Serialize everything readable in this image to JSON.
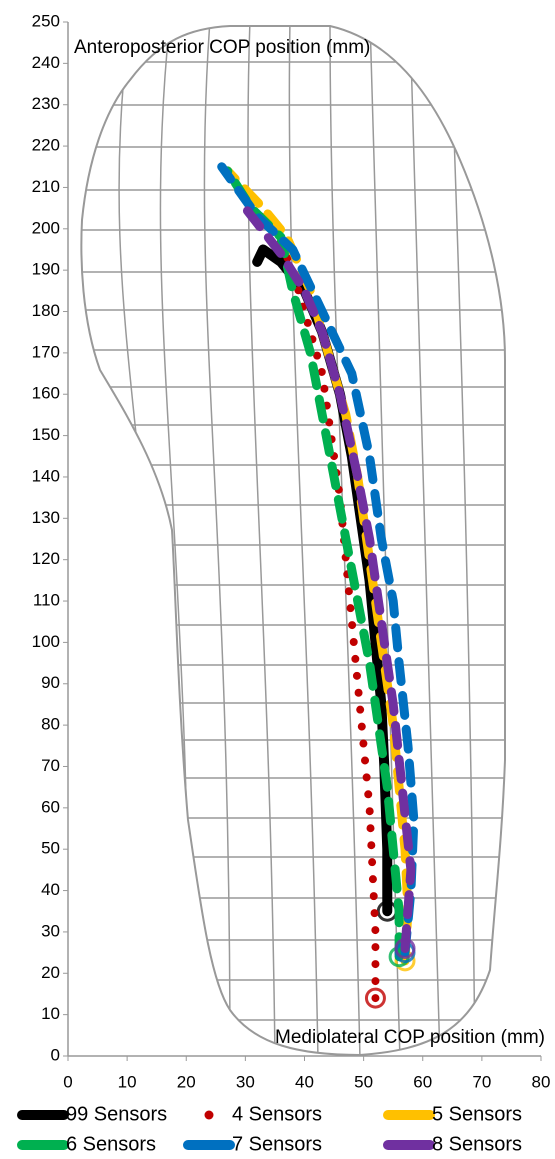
{
  "chart_data": {
    "type": "line",
    "y_label": "Anteroposterior COP position (mm)",
    "x_label": "Mediolateral COP position (mm)",
    "xlim": [
      0,
      80
    ],
    "xticks": [
      0,
      10,
      20,
      30,
      40,
      50,
      60,
      70,
      80
    ],
    "ylim": [
      0,
      250
    ],
    "yticks": [
      0,
      10,
      20,
      30,
      40,
      50,
      60,
      70,
      80,
      90,
      100,
      110,
      120,
      130,
      140,
      150,
      160,
      170,
      180,
      190,
      200,
      210,
      220,
      230,
      240,
      250
    ],
    "series": [
      {
        "name": "99 Sensors",
        "color": "#000000",
        "style": "solid",
        "x": [
          54,
          54,
          53.5,
          53,
          52,
          51,
          49.5,
          48,
          46,
          43,
          40,
          36,
          33,
          32
        ],
        "values": [
          35,
          50,
          70,
          85,
          100,
          115,
          130,
          145,
          160,
          175,
          185,
          192,
          195,
          192
        ]
      },
      {
        "name": "4 Sensors",
        "color": "#c00000",
        "style": "dotted",
        "x": [
          52,
          52,
          52,
          51.5,
          51,
          50,
          49,
          48,
          47,
          46,
          44.5,
          43,
          40,
          38,
          35,
          31
        ],
        "values": [
          14,
          20,
          30,
          45,
          60,
          75,
          90,
          105,
          120,
          135,
          150,
          165,
          180,
          190,
          200,
          205
        ]
      },
      {
        "name": "5 Sensors",
        "color": "#ffc000",
        "style": "dashed",
        "x": [
          57,
          57.5,
          57,
          56,
          55,
          53.5,
          52,
          50.5,
          49,
          47,
          44,
          41,
          37,
          33,
          27
        ],
        "values": [
          23,
          35,
          50,
          65,
          80,
          95,
          110,
          125,
          140,
          155,
          170,
          185,
          198,
          205,
          214
        ]
      },
      {
        "name": "6 Sensors",
        "color": "#00b050",
        "style": "dashed",
        "x": [
          56,
          56,
          55,
          54,
          52.5,
          51,
          49,
          47,
          45,
          43,
          41,
          38,
          36,
          31,
          27
        ],
        "values": [
          24,
          35,
          50,
          65,
          80,
          95,
          110,
          125,
          140,
          155,
          170,
          185,
          198,
          205,
          214
        ]
      },
      {
        "name": "7 Sensors",
        "color": "#0070c0",
        "style": "dashed",
        "x": [
          57,
          58,
          58.5,
          57.5,
          56,
          55,
          53,
          51,
          48,
          43,
          38,
          32,
          26
        ],
        "values": [
          25,
          40,
          57,
          75,
          95,
          110,
          125,
          145,
          165,
          180,
          195,
          203,
          215
        ]
      },
      {
        "name": "8 Sensors",
        "color": "#7030a0",
        "style": "dashed",
        "x": [
          57,
          58,
          56.5,
          55,
          53,
          51,
          49,
          46,
          43,
          40,
          36,
          30
        ],
        "values": [
          26,
          45,
          65,
          85,
          105,
          125,
          140,
          160,
          175,
          185,
          194,
          205
        ]
      }
    ]
  }
}
